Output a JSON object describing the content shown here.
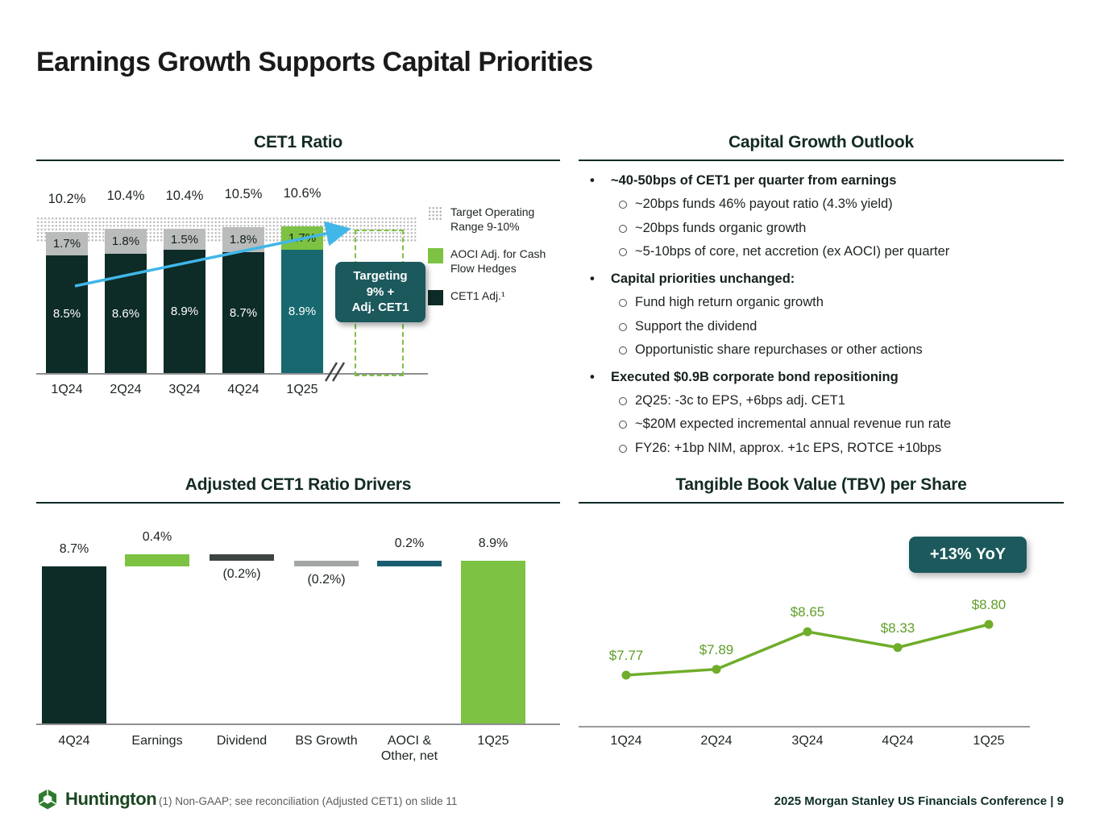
{
  "title": "Earnings Growth Supports Capital Priorities",
  "colors": {
    "dark_green": "#0d2b27",
    "teal": "#17696f",
    "lime": "#7dc242",
    "gray": "#b9bcbb",
    "charcoal": "#3e4442",
    "mid_gray": "#a2a6a4",
    "aoci_teal": "#1b5d70",
    "badge_teal": "#1c595c",
    "arrow_blue": "#41b6e8",
    "line_green": "#6fad2a"
  },
  "chart_data": [
    {
      "id": "cet1",
      "type": "stacked-bar",
      "title": "CET1 Ratio",
      "categories": [
        "1Q24",
        "2Q24",
        "3Q24",
        "4Q24",
        "1Q25"
      ],
      "series": [
        {
          "name": "CET1 Adj.",
          "values": [
            8.5,
            8.6,
            8.9,
            8.7,
            8.9
          ],
          "labels": [
            "8.5%",
            "8.6%",
            "8.9%",
            "8.7%",
            "8.9%"
          ]
        },
        {
          "name": "AOCI Adj. for Cash Flow Hedges",
          "values": [
            1.7,
            1.8,
            1.5,
            1.8,
            1.7
          ],
          "labels": [
            "1.7%",
            "1.8%",
            "1.5%",
            "1.8%",
            "1.7%"
          ]
        }
      ],
      "totals": [
        "10.2%",
        "10.4%",
        "10.4%",
        "10.5%",
        "10.6%"
      ],
      "ylim": [
        0,
        11
      ],
      "target_band": {
        "range": [
          9,
          10
        ],
        "label": "Target Operating Range 9-10%"
      },
      "callout_lines": [
        "Targeting",
        "9% +",
        "Adj. CET1"
      ],
      "legend": [
        {
          "swatch": "dotted",
          "label": "Target Operating Range 9-10%"
        },
        {
          "swatch": "lime",
          "label": "AOCI Adj. for Cash Flow Hedges"
        },
        {
          "swatch": "dark",
          "label": "CET1 Adj.¹"
        }
      ]
    },
    {
      "id": "drivers",
      "type": "waterfall",
      "title": "Adjusted CET1 Ratio Drivers",
      "categories": [
        "4Q24",
        "Earnings",
        "Dividend",
        "BS Growth",
        "AOCI &\nOther, net",
        "1Q25"
      ],
      "values": [
        8.7,
        0.4,
        -0.2,
        -0.2,
        0.2,
        8.9
      ],
      "labels": [
        "8.7%",
        "0.4%",
        "(0.2%)",
        "(0.2%)",
        "0.2%",
        "8.9%"
      ],
      "bar_kinds": [
        "total-dark",
        "inc-lime",
        "dec-charcoal",
        "dec-gray",
        "inc-teal",
        "total-lime"
      ]
    },
    {
      "id": "tbv",
      "type": "line",
      "title": "Tangible Book Value (TBV) per Share",
      "categories": [
        "1Q24",
        "2Q24",
        "3Q24",
        "4Q24",
        "1Q25"
      ],
      "values": [
        7.77,
        7.89,
        8.65,
        8.33,
        8.8
      ],
      "labels": [
        "$7.77",
        "$7.89",
        "$8.65",
        "$8.33",
        "$8.80"
      ],
      "badge": "+13% YoY"
    }
  ],
  "outlook": {
    "title": "Capital Growth Outlook",
    "bullets": [
      {
        "text": "~40-50bps of CET1 per quarter from earnings",
        "subs": [
          "~20bps funds 46% payout ratio (4.3% yield)",
          "~20bps funds organic growth",
          "~5-10bps of core, net accretion (ex AOCI) per quarter"
        ]
      },
      {
        "text": "Capital priorities unchanged:",
        "subs": [
          "Fund high return organic growth",
          "Support the dividend",
          "Opportunistic share repurchases or other actions"
        ]
      },
      {
        "text": "Executed $0.9B corporate bond repositioning",
        "subs": [
          "2Q25: -3c to EPS, +6bps adj. CET1",
          "~$20M expected incremental annual revenue run rate",
          "FY26: +1bp NIM,  approx. +1c EPS, ROTCE +10bps"
        ]
      }
    ]
  },
  "footer": {
    "logo_text": "Huntington",
    "footnote": "(1) Non-GAAP; see reconciliation (Adjusted CET1) on slide 11",
    "conference": "2025 Morgan Stanley US Financials Conference |  9"
  }
}
